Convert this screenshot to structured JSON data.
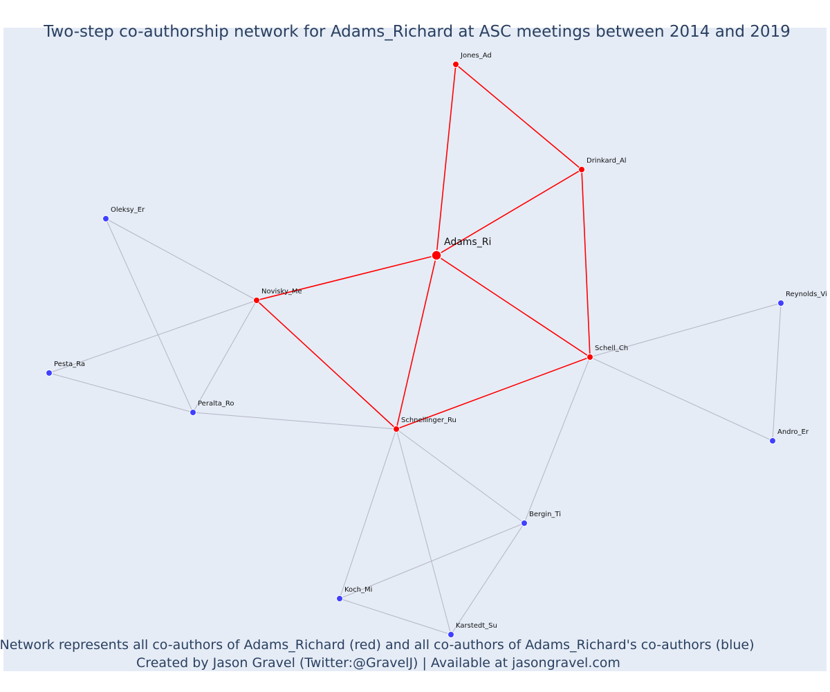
{
  "title": "Two-step co-authorship network for Adams_Richard at ASC meetings between 2014 and 2019",
  "caption": {
    "line1": "Network represents all co-authors of Adams_Richard (red) and all co-authors of Adams_Richard's co-authors (blue)",
    "line2": "Created by Jason Gravel (Twitter:@GravelJ) | Available at jasongravel.com"
  },
  "colors": {
    "plot_background": "#e5ecf6",
    "title_text": "#2a3f5f",
    "direct_coauthor": "#ff0000",
    "second_step_coauthor": "#4040ff",
    "direct_edge": "#ff0000",
    "second_step_edge": "#b4b4c4"
  },
  "nodes": [
    {
      "id": "Adams_Ri",
      "label": "Adams_Ri",
      "group": "center"
    },
    {
      "id": "Jones_Ad",
      "label": "Jones_Ad",
      "group": "direct"
    },
    {
      "id": "Drinkard_Al",
      "label": "Drinkard_Al",
      "group": "direct"
    },
    {
      "id": "Novisky_Me",
      "label": "Novisky_Me",
      "group": "direct"
    },
    {
      "id": "Schell_Ch",
      "label": "Schell_Ch",
      "group": "direct"
    },
    {
      "id": "Schnellinger_Ru",
      "label": "Schnellinger_Ru",
      "group": "direct"
    },
    {
      "id": "Oleksy_Er",
      "label": "Oleksy_Er",
      "group": "second"
    },
    {
      "id": "Pesta_Ra",
      "label": "Pesta_Ra",
      "group": "second"
    },
    {
      "id": "Peralta_Ro",
      "label": "Peralta_Ro",
      "group": "second"
    },
    {
      "id": "Reynolds_Vi",
      "label": "Reynolds_Vi",
      "group": "second"
    },
    {
      "id": "Andro_Er",
      "label": "Andro_Er",
      "group": "second"
    },
    {
      "id": "Bergin_Ti",
      "label": "Bergin_Ti",
      "group": "second"
    },
    {
      "id": "Koch_Mi",
      "label": "Koch_Mi",
      "group": "second"
    },
    {
      "id": "Karstedt_Su",
      "label": "Karstedt_Su",
      "group": "second"
    }
  ],
  "edges": [
    {
      "source": "Adams_Ri",
      "target": "Jones_Ad",
      "type": "direct"
    },
    {
      "source": "Adams_Ri",
      "target": "Drinkard_Al",
      "type": "direct"
    },
    {
      "source": "Adams_Ri",
      "target": "Novisky_Me",
      "type": "direct"
    },
    {
      "source": "Adams_Ri",
      "target": "Schell_Ch",
      "type": "direct"
    },
    {
      "source": "Adams_Ri",
      "target": "Schnellinger_Ru",
      "type": "direct"
    },
    {
      "source": "Jones_Ad",
      "target": "Drinkard_Al",
      "type": "direct"
    },
    {
      "source": "Drinkard_Al",
      "target": "Schell_Ch",
      "type": "direct"
    },
    {
      "source": "Novisky_Me",
      "target": "Schnellinger_Ru",
      "type": "direct"
    },
    {
      "source": "Schnellinger_Ru",
      "target": "Schell_Ch",
      "type": "direct"
    },
    {
      "source": "Novisky_Me",
      "target": "Oleksy_Er",
      "type": "second"
    },
    {
      "source": "Novisky_Me",
      "target": "Pesta_Ra",
      "type": "second"
    },
    {
      "source": "Novisky_Me",
      "target": "Peralta_Ro",
      "type": "second"
    },
    {
      "source": "Oleksy_Er",
      "target": "Peralta_Ro",
      "type": "second"
    },
    {
      "source": "Pesta_Ra",
      "target": "Peralta_Ro",
      "type": "second"
    },
    {
      "source": "Peralta_Ro",
      "target": "Schnellinger_Ru",
      "type": "second"
    },
    {
      "source": "Schell_Ch",
      "target": "Reynolds_Vi",
      "type": "second"
    },
    {
      "source": "Schell_Ch",
      "target": "Andro_Er",
      "type": "second"
    },
    {
      "source": "Reynolds_Vi",
      "target": "Andro_Er",
      "type": "second"
    },
    {
      "source": "Schell_Ch",
      "target": "Bergin_Ti",
      "type": "second"
    },
    {
      "source": "Schnellinger_Ru",
      "target": "Bergin_Ti",
      "type": "second"
    },
    {
      "source": "Schnellinger_Ru",
      "target": "Koch_Mi",
      "type": "second"
    },
    {
      "source": "Schnellinger_Ru",
      "target": "Karstedt_Su",
      "type": "second"
    },
    {
      "source": "Bergin_Ti",
      "target": "Koch_Mi",
      "type": "second"
    },
    {
      "source": "Bergin_Ti",
      "target": "Karstedt_Su",
      "type": "second"
    },
    {
      "source": "Koch_Mi",
      "target": "Karstedt_Su",
      "type": "second"
    }
  ]
}
